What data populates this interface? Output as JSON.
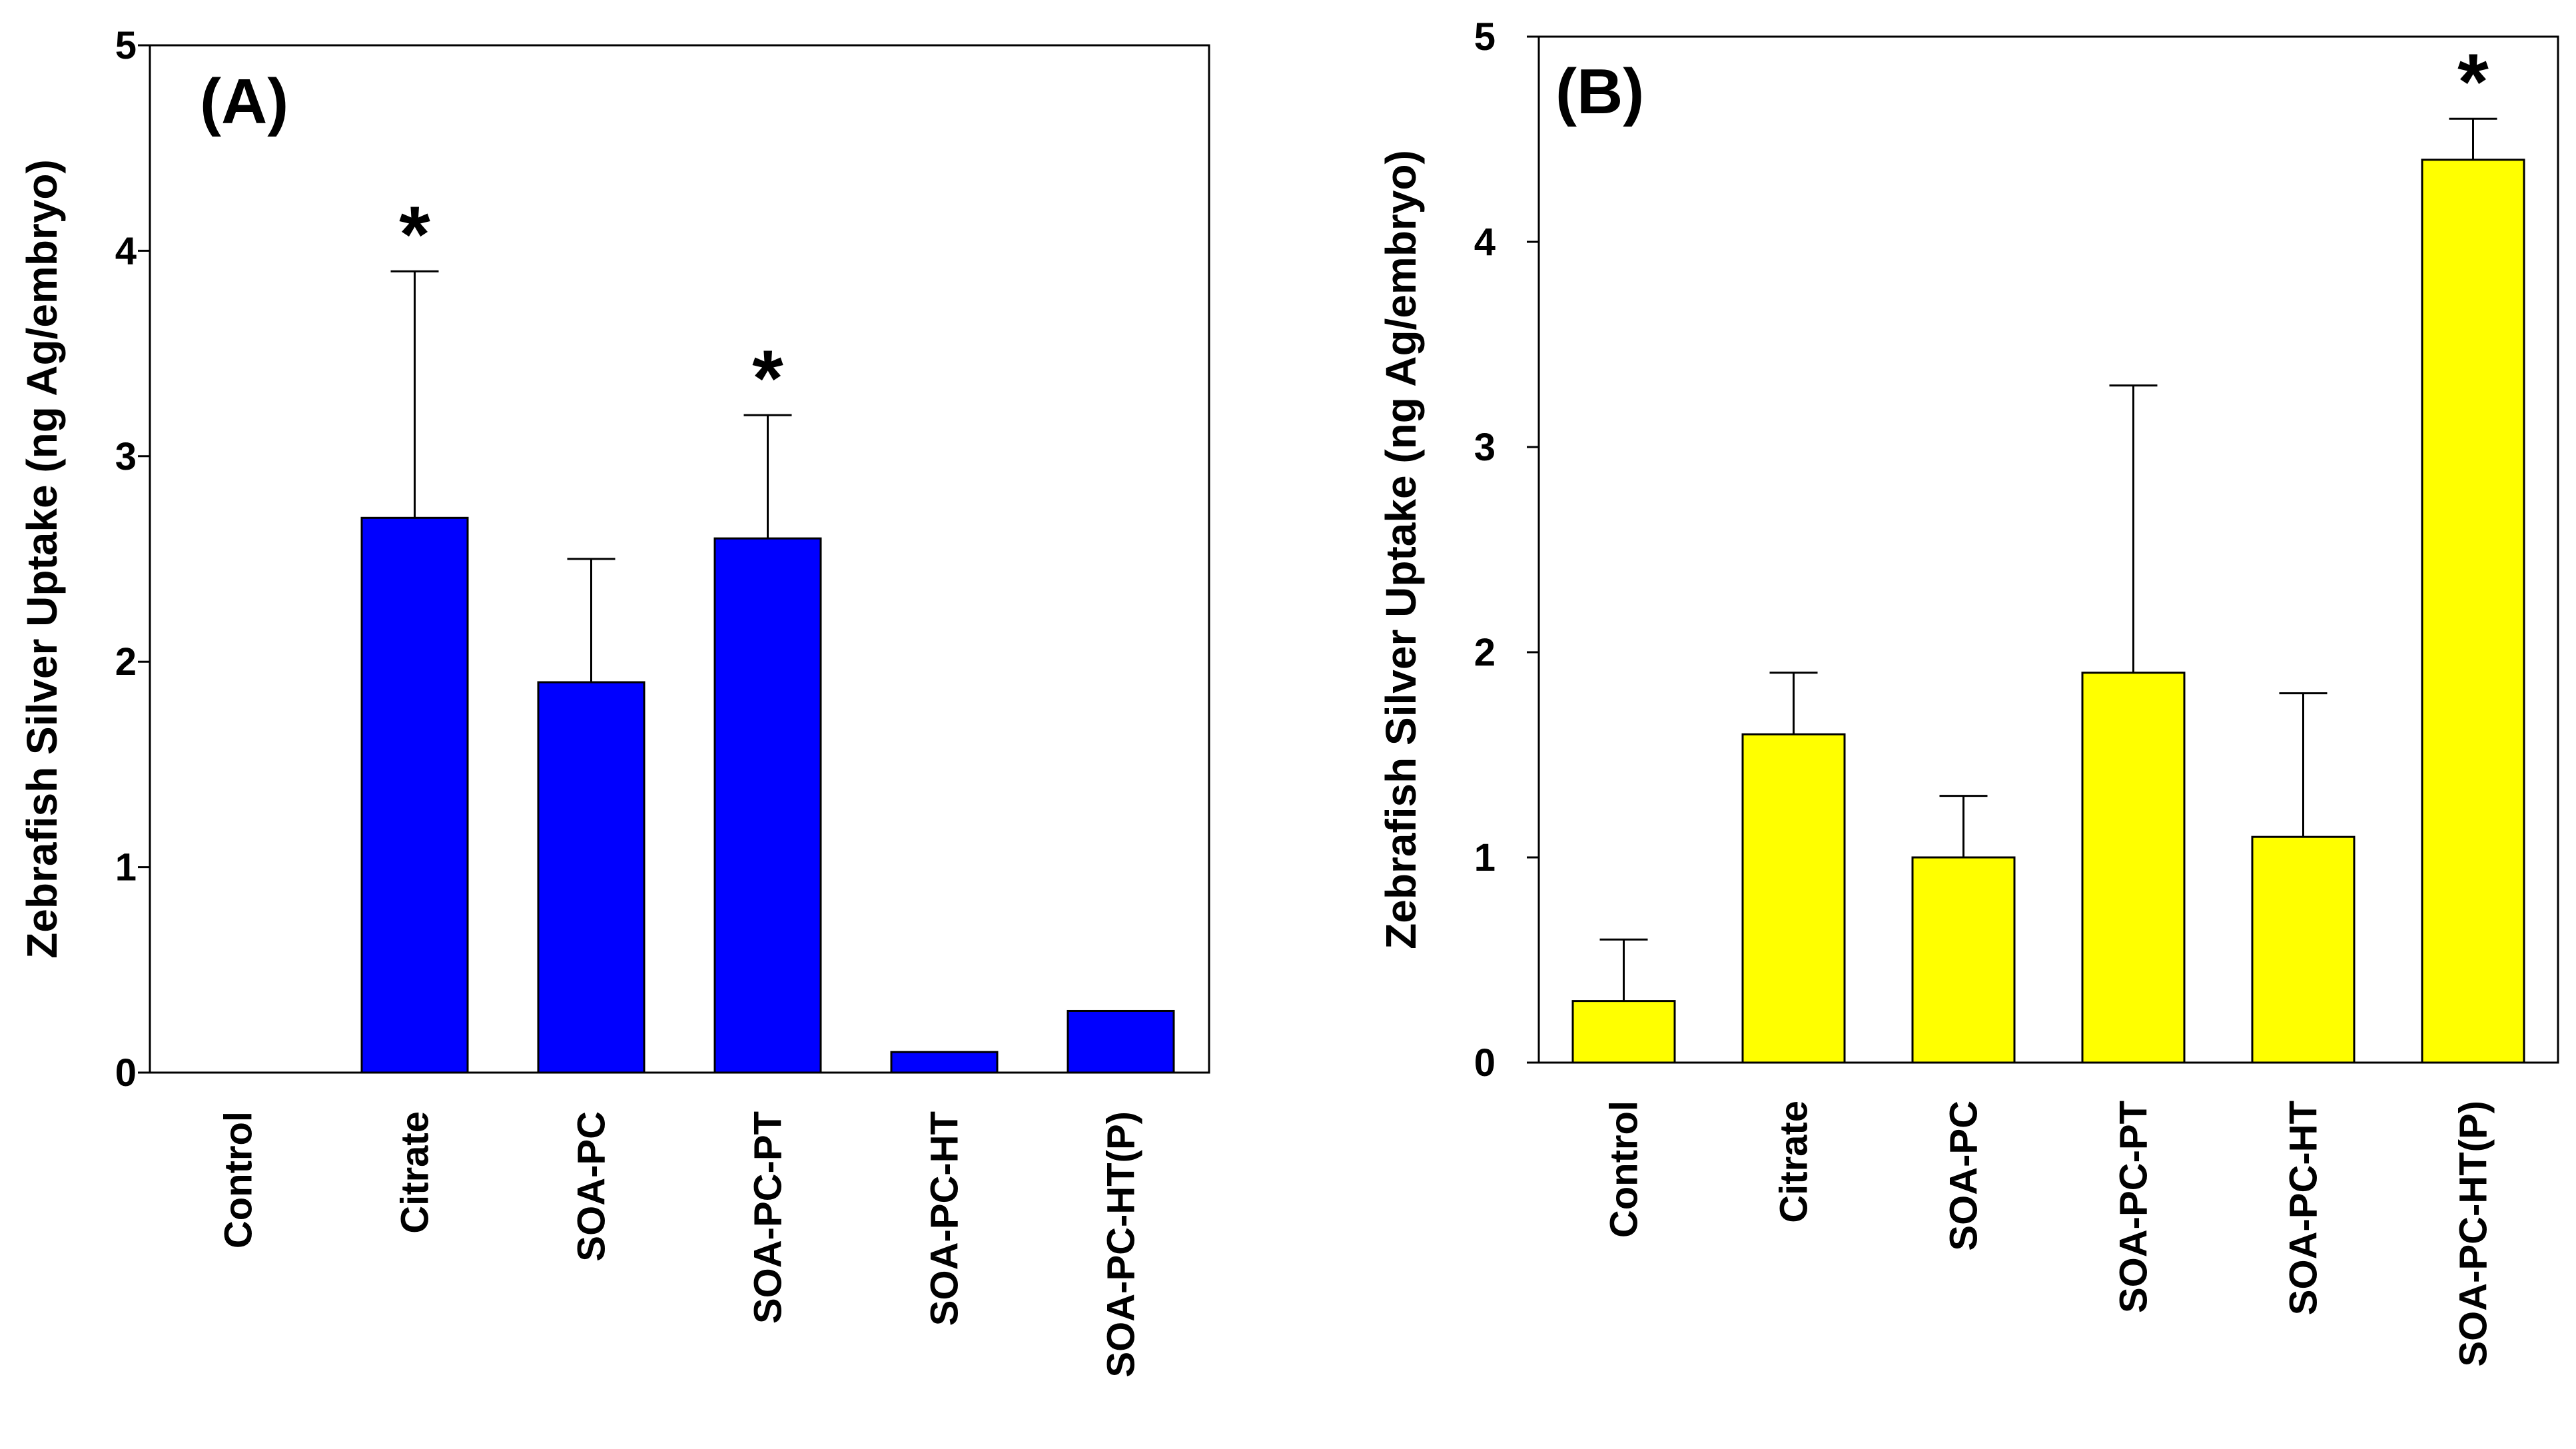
{
  "chart_data": [
    {
      "type": "bar",
      "panel_label": "(A)",
      "ylabel": "Zebrafish Silver Uptake (ng Ag/embryo)",
      "xlabel": "",
      "ylim": [
        0,
        5
      ],
      "yticks": [
        "0",
        "1",
        "2",
        "3",
        "4",
        "5"
      ],
      "categories": [
        "Control",
        "Citrate",
        "SOA-PC",
        "SOA-PC-PT",
        "SOA-PC-HT",
        "SOA-PC-HT(P)"
      ],
      "values": [
        0,
        2.7,
        1.9,
        2.6,
        0.1,
        0.3
      ],
      "error_upper": [
        0,
        3.9,
        2.5,
        3.2,
        null,
        null
      ],
      "significance": [
        "",
        "*",
        "",
        "*",
        "",
        ""
      ],
      "bar_color": "#0000ff",
      "grid": false
    },
    {
      "type": "bar",
      "panel_label": "(B)",
      "ylabel": "Zebrafish Silver Uptake (ng Ag/embryo)",
      "xlabel": "",
      "ylim": [
        0,
        5
      ],
      "yticks": [
        "0",
        "1",
        "2",
        "3",
        "4",
        "5"
      ],
      "categories": [
        "Control",
        "Citrate",
        "SOA-PC",
        "SOA-PC-PT",
        "SOA-PC-HT",
        "SOA-PC-HT(P)"
      ],
      "values": [
        0.3,
        1.6,
        1.0,
        1.9,
        1.1,
        4.4
      ],
      "error_upper": [
        0.6,
        1.9,
        1.3,
        3.3,
        1.8,
        4.6
      ],
      "significance": [
        "",
        "",
        "",
        "",
        "",
        "*"
      ],
      "bar_color": "#ffff00",
      "grid": false
    }
  ]
}
